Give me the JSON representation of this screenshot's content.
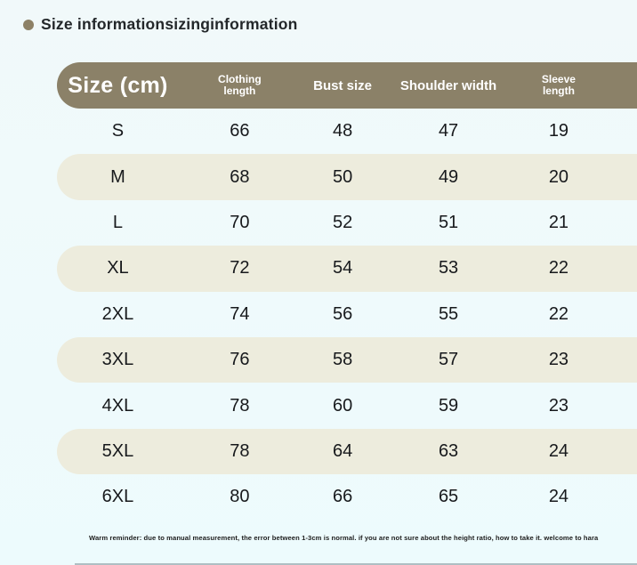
{
  "page": {
    "background_color": "#edfbfd"
  },
  "title": {
    "text": "Size informationsizinginformation",
    "bullet_icon_color": "#8d8166"
  },
  "table": {
    "header_bg_color": "#8b8168",
    "stripe_bg_color": "#edecdd",
    "header": {
      "size": "Size (cm)",
      "clothing_length": "Clothing\nlength",
      "bust_size": "Bust size",
      "shoulder_width": "Shoulder width",
      "sleeve_length": "Sleeve\nlength"
    },
    "rows": [
      {
        "size": "S",
        "values": [
          "66",
          "48",
          "47",
          "19"
        ]
      },
      {
        "size": "M",
        "values": [
          "68",
          "50",
          "49",
          "20"
        ]
      },
      {
        "size": "L",
        "values": [
          "70",
          "52",
          "51",
          "21"
        ]
      },
      {
        "size": "XL",
        "values": [
          "72",
          "54",
          "53",
          "22"
        ]
      },
      {
        "size": "2XL",
        "values": [
          "74",
          "56",
          "55",
          "22"
        ]
      },
      {
        "size": "3XL",
        "values": [
          "76",
          "58",
          "57",
          "23"
        ]
      },
      {
        "size": "4XL",
        "values": [
          "78",
          "60",
          "59",
          "23"
        ]
      },
      {
        "size": "5XL",
        "values": [
          "78",
          "64",
          "63",
          "24"
        ]
      },
      {
        "size": "6XL",
        "values": [
          "80",
          "66",
          "65",
          "24"
        ]
      }
    ]
  },
  "footer": {
    "reminder": "Warm reminder: due to manual measurement, the error between 1-3cm is normal. if you are not sure about the height ratio, how to take it. welcome to hara"
  }
}
